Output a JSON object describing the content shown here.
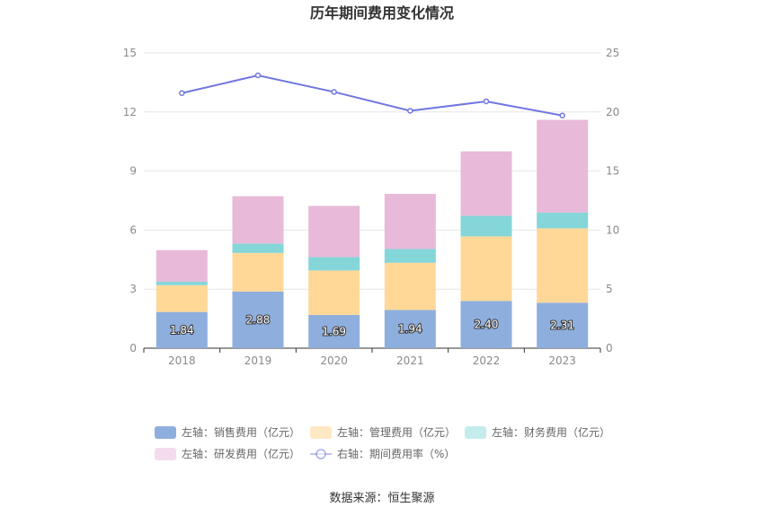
{
  "chart_data": {
    "type": "bar",
    "title": "历年期间费用变化情况",
    "categories": [
      "2018",
      "2019",
      "2020",
      "2021",
      "2022",
      "2023"
    ],
    "left_axis": {
      "ylim": [
        0,
        15
      ],
      "ticks": [
        "0",
        "3",
        "6",
        "9",
        "12",
        "15"
      ]
    },
    "right_axis": {
      "ylim": [
        0,
        25
      ],
      "ticks": [
        "0",
        "5",
        "10",
        "15",
        "20",
        "25"
      ]
    },
    "stacked": true,
    "series": [
      {
        "name": "左轴：销售费用（亿元）",
        "type": "bar",
        "axis": "left",
        "color": "#8eaedd",
        "values": [
          1.84,
          2.88,
          1.69,
          1.94,
          2.4,
          2.31
        ],
        "labels": [
          "1.84",
          "2.88",
          "1.69",
          "1.94",
          "2.40",
          "2.31"
        ]
      },
      {
        "name": "左轴：管理费用（亿元）",
        "type": "bar",
        "axis": "left",
        "color": "#ffd898",
        "legend_color": "#ffe8c4",
        "values": [
          1.36,
          1.96,
          2.26,
          2.4,
          3.28,
          3.78
        ]
      },
      {
        "name": "左轴：财务费用（亿元）",
        "type": "bar",
        "axis": "left",
        "color": "#84d6d8",
        "legend_color": "#c4ecec",
        "values": [
          0.18,
          0.48,
          0.68,
          0.7,
          1.05,
          0.8
        ]
      },
      {
        "name": "左轴：研发费用（亿元）",
        "type": "bar",
        "axis": "left",
        "color": "#e8b9d9",
        "legend_color": "#f4dcec",
        "values": [
          1.6,
          2.4,
          2.6,
          2.8,
          3.27,
          4.71
        ]
      },
      {
        "name": "右轴：期间费用率（%）",
        "type": "line",
        "axis": "right",
        "color": "#7077e0",
        "values": [
          21.6,
          23.1,
          21.7,
          20.1,
          20.9,
          19.7
        ]
      }
    ],
    "legend_position": "bottom",
    "grid": true
  },
  "source_text": "数据来源：恒生聚源"
}
